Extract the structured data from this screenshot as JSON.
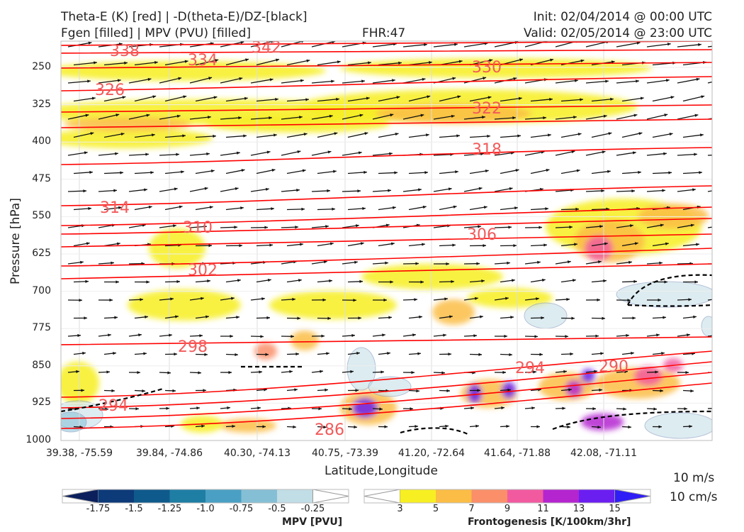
{
  "header": {
    "line1_left": "Theta-E (K) [red] | -D(theta-E)/DZ-[black]",
    "line2_left": "Fgen [filled] | MPV (PVU) [filled]",
    "fhr": "FHR:47",
    "init": "Init: 02/04/2014 @ 00:00 UTC",
    "valid": "Valid: 02/05/2014 @ 23:00 UTC"
  },
  "chart_data": {
    "type": "contour",
    "xlabel": "Latitude,Longitude",
    "ylabel": "Pressure [hPa]",
    "x_ticks": [
      "39.38, -75.59",
      "39.84, -74.86",
      "40.30, -74.13",
      "40.75, -73.39",
      "41.20, -72.64",
      "41.64, -71.88",
      "42.08, -71.11"
    ],
    "y_ticks": [
      "250",
      "325",
      "400",
      "475",
      "550",
      "625",
      "700",
      "775",
      "850",
      "925",
      "1000"
    ],
    "ylim": [
      1000,
      190
    ],
    "theta_e_labels": [
      "338",
      "342",
      "334",
      "330",
      "326",
      "322",
      "318",
      "314",
      "310",
      "306",
      "302",
      "298",
      "294",
      "290",
      "294",
      "286"
    ],
    "series": [
      {
        "name": "Theta-E (K)",
        "color": "#ff0000"
      },
      {
        "name": "-D(theta-E)/DZ",
        "color": "#000000"
      }
    ],
    "mpv_colorbar": {
      "title": "MPV [PVU]",
      "labels": [
        "-1.75",
        "-1.5",
        "-1.25",
        "-1.0",
        "-0.75",
        "-0.5",
        "-0.25"
      ],
      "colors": [
        "#0a1f5c",
        "#0d3a78",
        "#0f5a8c",
        "#1f7ea4",
        "#4aa0c4",
        "#85bfd6",
        "#c1dde6",
        "#ffffff"
      ]
    },
    "fgen_colorbar": {
      "title": "Frontogenesis [K/100km/3hr]",
      "labels": [
        "3",
        "5",
        "7",
        "9",
        "11",
        "13",
        "15"
      ],
      "colors": [
        "#ffffff",
        "#f7ef22",
        "#fbbd45",
        "#fa8f6a",
        "#f25aa0",
        "#b425d0",
        "#6b1ef0",
        "#2f1ef5"
      ]
    },
    "wind_scale": [
      "10 m/s",
      "10 cm/s"
    ]
  }
}
